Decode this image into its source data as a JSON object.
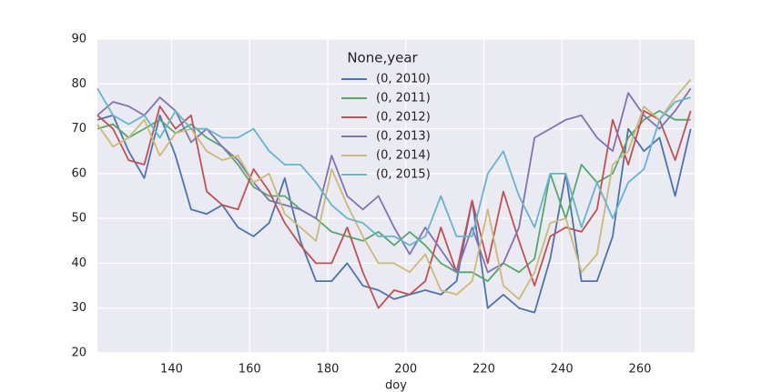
{
  "chart_data": {
    "type": "line",
    "xlabel": "doy",
    "legend_title": "None,year",
    "legend": "upper center",
    "grid": true,
    "x": [
      121,
      125,
      129,
      133,
      137,
      141,
      145,
      149,
      153,
      157,
      161,
      165,
      169,
      173,
      177,
      181,
      185,
      189,
      193,
      197,
      201,
      205,
      209,
      213,
      217,
      221,
      225,
      229,
      233,
      237,
      241,
      245,
      249,
      253,
      257,
      261,
      265,
      269,
      273
    ],
    "xlim": [
      121,
      274
    ],
    "xticks": [
      140,
      160,
      180,
      200,
      220,
      240,
      260
    ],
    "ylim": [
      20,
      90
    ],
    "yticks": [
      20,
      30,
      40,
      50,
      60,
      70,
      80,
      90
    ],
    "series": [
      {
        "name": "(0, 2010)",
        "color": "#4c72b0",
        "values": [
          72,
          73,
          65,
          59,
          73,
          64,
          52,
          51,
          53,
          48,
          46,
          49,
          59,
          45,
          36,
          36,
          40,
          35,
          34,
          32,
          33,
          34,
          33,
          36,
          54,
          30,
          33,
          30,
          29,
          41,
          60,
          36,
          36,
          46,
          70,
          65,
          68,
          55,
          70
        ]
      },
      {
        "name": "(0, 2011)",
        "color": "#55a868",
        "values": [
          70,
          71,
          68,
          70,
          72,
          69,
          71,
          68,
          66,
          62,
          57,
          55,
          55,
          52,
          50,
          47,
          46,
          45,
          47,
          44,
          47,
          44,
          40,
          38,
          38,
          36,
          40,
          38,
          41,
          60,
          50,
          62,
          58,
          60,
          68,
          72,
          74,
          72,
          72
        ]
      },
      {
        "name": "(0, 2012)",
        "color": "#c44e52",
        "values": [
          73,
          70,
          63,
          62,
          75,
          70,
          73,
          56,
          53,
          52,
          61,
          56,
          49,
          44,
          40,
          40,
          48,
          38,
          30,
          34,
          33,
          36,
          48,
          38,
          54,
          40,
          56,
          45,
          35,
          46,
          48,
          47,
          52,
          72,
          62,
          74,
          72,
          63,
          74
        ]
      },
      {
        "name": "(0, 2013)",
        "color": "#8172b2",
        "values": [
          73,
          76,
          75,
          73,
          77,
          74,
          67,
          70,
          66,
          63,
          58,
          54,
          53,
          52,
          50,
          64,
          55,
          52,
          55,
          48,
          42,
          48,
          43,
          38,
          48,
          38,
          40,
          48,
          68,
          70,
          72,
          73,
          68,
          65,
          78,
          73,
          70,
          74,
          79
        ]
      },
      {
        "name": "(0, 2014)",
        "color": "#ccb974",
        "values": [
          71,
          66,
          68,
          72,
          64,
          69,
          70,
          65,
          63,
          64,
          58,
          60,
          51,
          48,
          45,
          61,
          53,
          46,
          40,
          40,
          38,
          42,
          34,
          33,
          36,
          52,
          35,
          32,
          38,
          49,
          50,
          38,
          42,
          62,
          65,
          75,
          72,
          77,
          81
        ]
      },
      {
        "name": "(0, 2015)",
        "color": "#64b5cd",
        "values": [
          79,
          73,
          71,
          73,
          68,
          74,
          70,
          70,
          68,
          68,
          70,
          65,
          62,
          62,
          58,
          53,
          50,
          49,
          46,
          46,
          44,
          46,
          55,
          46,
          46,
          60,
          65,
          55,
          48,
          60,
          60,
          48,
          58,
          50,
          58,
          61,
          72,
          76,
          77
        ]
      }
    ]
  }
}
